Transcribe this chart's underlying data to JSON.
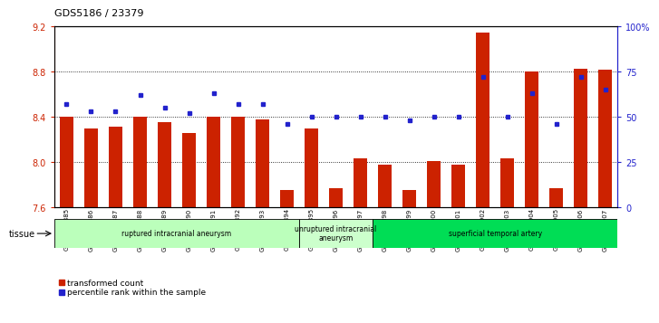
{
  "title": "GDS5186 / 23379",
  "samples": [
    "GSM1306885",
    "GSM1306886",
    "GSM1306887",
    "GSM1306888",
    "GSM1306889",
    "GSM1306890",
    "GSM1306891",
    "GSM1306892",
    "GSM1306893",
    "GSM1306894",
    "GSM1306895",
    "GSM1306896",
    "GSM1306897",
    "GSM1306898",
    "GSM1306899",
    "GSM1306900",
    "GSM1306901",
    "GSM1306902",
    "GSM1306903",
    "GSM1306904",
    "GSM1306905",
    "GSM1306906",
    "GSM1306907"
  ],
  "bar_values": [
    8.4,
    8.3,
    8.31,
    8.4,
    8.35,
    8.26,
    8.4,
    8.4,
    8.38,
    7.75,
    8.3,
    7.77,
    8.03,
    7.98,
    7.75,
    8.01,
    7.98,
    9.15,
    8.03,
    8.8,
    7.77,
    8.83,
    8.82
  ],
  "percentile_values": [
    57,
    53,
    53,
    62,
    55,
    52,
    63,
    57,
    57,
    46,
    50,
    50,
    50,
    50,
    48,
    50,
    50,
    72,
    50,
    63,
    46,
    72,
    65
  ],
  "y_min": 7.6,
  "y_max": 9.2,
  "y_ticks_left": [
    7.6,
    8.0,
    8.4,
    8.8,
    9.2
  ],
  "y_ticks_right_vals": [
    0,
    25,
    50,
    75,
    100
  ],
  "y_ticks_right_labels": [
    "0",
    "25",
    "50",
    "75",
    "100%"
  ],
  "bar_color": "#cc2200",
  "dot_color": "#2222cc",
  "plot_bg_color": "#ffffff",
  "tissue_groups": [
    {
      "label": "ruptured intracranial aneurysm",
      "start": 0,
      "end": 10,
      "color": "#bbffbb"
    },
    {
      "label": "unruptured intracranial\naneurysm",
      "start": 10,
      "end": 13,
      "color": "#ccffcc"
    },
    {
      "label": "superficial temporal artery",
      "start": 13,
      "end": 23,
      "color": "#00dd55"
    }
  ],
  "tissue_label": "tissue",
  "legend_bar_label": "transformed count",
  "legend_dot_label": "percentile rank within the sample"
}
